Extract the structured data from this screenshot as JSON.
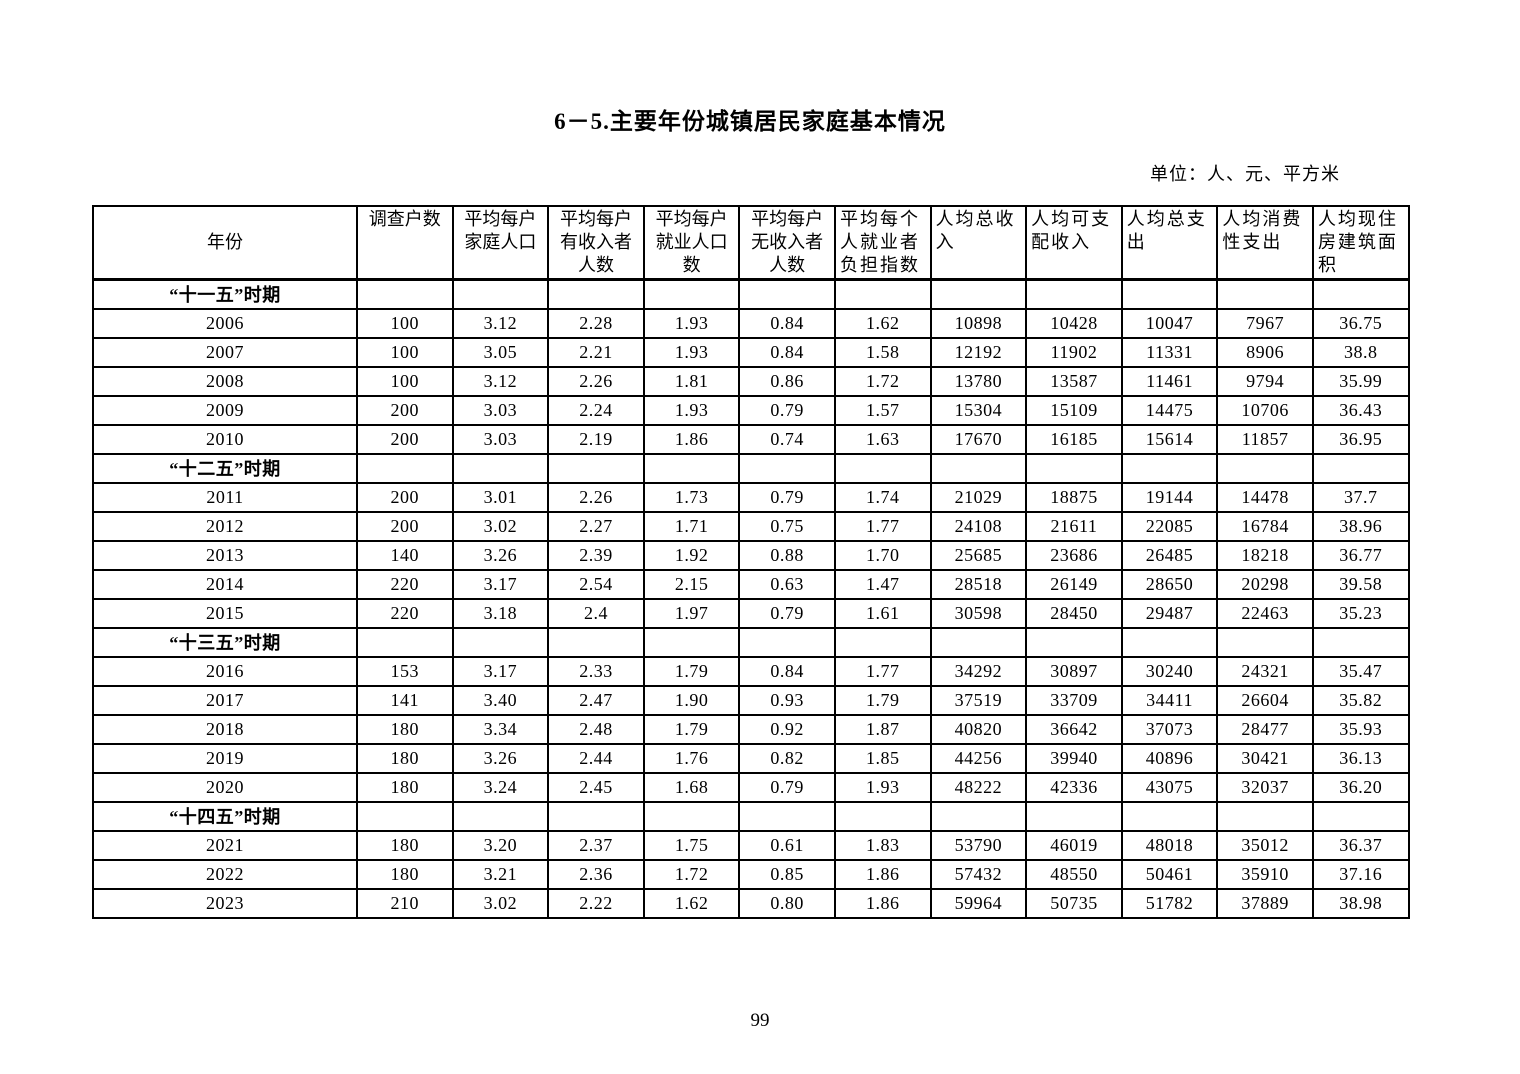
{
  "page": {
    "title": "6－5.主要年份城镇居民家庭基本情况",
    "unit_label": "单位：人、元、平方米",
    "page_number": "99"
  },
  "table": {
    "type": "table",
    "columns": [
      "年份",
      "调查户数",
      "平均每户\n家庭人口",
      "平均每户\n有收入者\n人数",
      "平均每户\n就业人口\n数",
      "平均每户\n无收入者\n人数",
      "平均每个\n人就业者\n负担指数",
      "人均总收\n入",
      "人均可支\n配收入",
      "人均总支\n出",
      "人均消费\n性支出",
      "人均现住\n房建筑面\n积"
    ],
    "sections": [
      {
        "label": "“十一五”时期",
        "rows": [
          [
            "2006",
            "100",
            "3.12",
            "2.28",
            "1.93",
            "0.84",
            "1.62",
            "10898",
            "10428",
            "10047",
            "7967",
            "36.75"
          ],
          [
            "2007",
            "100",
            "3.05",
            "2.21",
            "1.93",
            "0.84",
            "1.58",
            "12192",
            "11902",
            "11331",
            "8906",
            "38.8"
          ],
          [
            "2008",
            "100",
            "3.12",
            "2.26",
            "1.81",
            "0.86",
            "1.72",
            "13780",
            "13587",
            "11461",
            "9794",
            "35.99"
          ],
          [
            "2009",
            "200",
            "3.03",
            "2.24",
            "1.93",
            "0.79",
            "1.57",
            "15304",
            "15109",
            "14475",
            "10706",
            "36.43"
          ],
          [
            "2010",
            "200",
            "3.03",
            "2.19",
            "1.86",
            "0.74",
            "1.63",
            "17670",
            "16185",
            "15614",
            "11857",
            "36.95"
          ]
        ]
      },
      {
        "label": "“十二五”时期",
        "rows": [
          [
            "2011",
            "200",
            "3.01",
            "2.26",
            "1.73",
            "0.79",
            "1.74",
            "21029",
            "18875",
            "19144",
            "14478",
            "37.7"
          ],
          [
            "2012",
            "200",
            "3.02",
            "2.27",
            "1.71",
            "0.75",
            "1.77",
            "24108",
            "21611",
            "22085",
            "16784",
            "38.96"
          ],
          [
            "2013",
            "140",
            "3.26",
            "2.39",
            "1.92",
            "0.88",
            "1.70",
            "25685",
            "23686",
            "26485",
            "18218",
            "36.77"
          ],
          [
            "2014",
            "220",
            "3.17",
            "2.54",
            "2.15",
            "0.63",
            "1.47",
            "28518",
            "26149",
            "28650",
            "20298",
            "39.58"
          ],
          [
            "2015",
            "220",
            "3.18",
            "2.4",
            "1.97",
            "0.79",
            "1.61",
            "30598",
            "28450",
            "29487",
            "22463",
            "35.23"
          ]
        ]
      },
      {
        "label": "“十三五”时期",
        "rows": [
          [
            "2016",
            "153",
            "3.17",
            "2.33",
            "1.79",
            "0.84",
            "1.77",
            "34292",
            "30897",
            "30240",
            "24321",
            "35.47"
          ],
          [
            "2017",
            "141",
            "3.40",
            "2.47",
            "1.90",
            "0.93",
            "1.79",
            "37519",
            "33709",
            "34411",
            "26604",
            "35.82"
          ],
          [
            "2018",
            "180",
            "3.34",
            "2.48",
            "1.79",
            "0.92",
            "1.87",
            "40820",
            "36642",
            "37073",
            "28477",
            "35.93"
          ],
          [
            "2019",
            "180",
            "3.26",
            "2.44",
            "1.76",
            "0.82",
            "1.85",
            "44256",
            "39940",
            "40896",
            "30421",
            "36.13"
          ],
          [
            "2020",
            "180",
            "3.24",
            "2.45",
            "1.68",
            "0.79",
            "1.93",
            "48222",
            "42336",
            "43075",
            "32037",
            "36.20"
          ]
        ]
      },
      {
        "label": "“十四五”时期",
        "rows": [
          [
            "2021",
            "180",
            "3.20",
            "2.37",
            "1.75",
            "0.61",
            "1.83",
            "53790",
            "46019",
            "48018",
            "35012",
            "36.37"
          ],
          [
            "2022",
            "180",
            "3.21",
            "2.36",
            "1.72",
            "0.85",
            "1.86",
            "57432",
            "48550",
            "50461",
            "35910",
            "37.16"
          ],
          [
            "2023",
            "210",
            "3.02",
            "2.22",
            "1.62",
            "0.80",
            "1.86",
            "59964",
            "50735",
            "51782",
            "37889",
            "38.98"
          ]
        ]
      }
    ]
  }
}
